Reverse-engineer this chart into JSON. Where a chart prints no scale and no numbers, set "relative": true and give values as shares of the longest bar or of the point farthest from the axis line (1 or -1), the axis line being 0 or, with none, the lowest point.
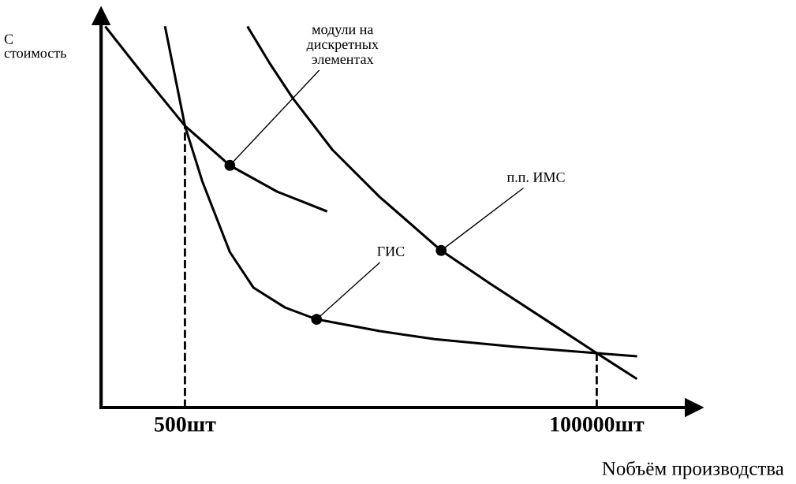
{
  "chart_data": {
    "type": "line",
    "relative": true,
    "xlabel": "Nобъём производства",
    "ylabel": "С\nстоимость",
    "log": "x",
    "xlim": [
      170,
      350000
    ],
    "xticks": [
      {
        "value": 500,
        "label": "500шт"
      },
      {
        "value": 100000,
        "label": "100000шт"
      }
    ],
    "tick_labels": "x",
    "grid": false,
    "legend": false,
    "marker": "none",
    "line_style": "solid",
    "series": [
      {
        "color": "#000000",
        "x": [
          181,
          292,
          500,
          891,
          1638,
          3073
        ],
        "values": [
          1.0,
          0.876,
          0.741,
          0.637,
          0.568,
          0.517
        ]
      },
      {
        "color": "#000000",
        "x": [
          388,
          461,
          500,
          625,
          891,
          1209,
          1814,
          2720,
          6124,
          12460,
          34360,
          100000,
          165600
        ],
        "values": [
          1.0,
          0.824,
          0.741,
          0.595,
          0.409,
          0.315,
          0.263,
          0.232,
          0.201,
          0.18,
          0.16,
          0.143,
          0.135
        ]
      },
      {
        "color": "#000000",
        "x": [
          1126,
          1481,
          2007,
          3334,
          6124,
          13510,
          25340,
          57060,
          100000,
          165600
        ],
        "values": [
          1.0,
          0.907,
          0.813,
          0.678,
          0.554,
          0.413,
          0.326,
          0.218,
          0.143,
          0.077
        ]
      }
    ],
    "ref_lines": [
      {
        "axis": "x",
        "value": 500,
        "line_style": "dashed",
        "color": "#000000"
      },
      {
        "axis": "x",
        "value": 100000,
        "line_style": "dashed",
        "color": "#000000"
      }
    ],
    "annotations": [
      {
        "text": "модули на\nдискретных\nэлементах",
        "x": 891,
        "y": 0.637
      },
      {
        "text": "ГИС",
        "x": 2720,
        "y": 0.232
      },
      {
        "text": "п.п. ИМС",
        "x": 13510,
        "y": 0.413
      }
    ]
  }
}
